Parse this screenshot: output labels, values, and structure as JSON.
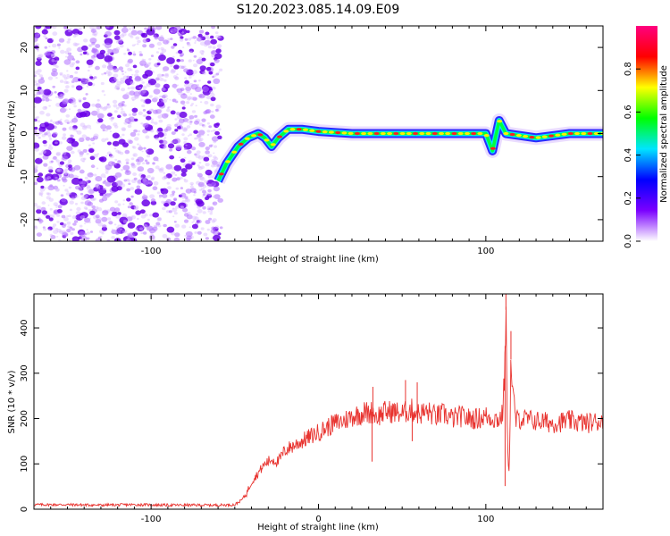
{
  "title": "S120.2023.085.14.09.E09",
  "chart_data": [
    {
      "type": "heatmap",
      "xlabel": "Height of straight line (km)",
      "ylabel": "Frequency (Hz)",
      "xlim": [
        -170,
        170
      ],
      "ylim": [
        -25,
        25
      ],
      "xticks": [
        -100,
        0,
        100
      ],
      "xtick_labels": [
        "-100",
        "",
        "100"
      ],
      "yticks": [
        -20,
        -10,
        0,
        10,
        20
      ],
      "ytick_labels": [
        "-20",
        "-10",
        "0",
        "10",
        "20"
      ],
      "grid": false,
      "noise_region_x": [
        -170,
        -58
      ],
      "ridge": [
        {
          "x": -60,
          "y": -11
        },
        {
          "x": -55,
          "y": -7
        },
        {
          "x": -48,
          "y": -3
        },
        {
          "x": -42,
          "y": -1
        },
        {
          "x": -36,
          "y": 0
        },
        {
          "x": -32,
          "y": -1
        },
        {
          "x": -28,
          "y": -3
        },
        {
          "x": -24,
          "y": -1
        },
        {
          "x": -18,
          "y": 1
        },
        {
          "x": -10,
          "y": 1
        },
        {
          "x": 0,
          "y": 0.5
        },
        {
          "x": 20,
          "y": 0
        },
        {
          "x": 60,
          "y": 0
        },
        {
          "x": 100,
          "y": 0
        },
        {
          "x": 104,
          "y": -4
        },
        {
          "x": 108,
          "y": 3
        },
        {
          "x": 112,
          "y": 0
        },
        {
          "x": 130,
          "y": -1
        },
        {
          "x": 150,
          "y": 0
        },
        {
          "x": 170,
          "y": 0
        }
      ],
      "colorbar": {
        "label": "Normalized spectral amplitude",
        "range": [
          0,
          1
        ],
        "ticks": [
          0.0,
          0.2,
          0.4,
          0.6,
          0.8
        ],
        "tick_labels": [
          "0.0",
          "0.2",
          "0.4",
          "0.6",
          "0.8"
        ],
        "colors": [
          "#ffffff",
          "#7b00ff",
          "#0000ff",
          "#00e5ff",
          "#00ff00",
          "#ffff00",
          "#ff0000",
          "#ff007f"
        ]
      }
    },
    {
      "type": "line",
      "xlabel": "Height of straight line (km)",
      "ylabel": "SNR (10 * v/v)",
      "xlim": [
        -170,
        170
      ],
      "ylim": [
        0,
        475
      ],
      "xticks": [
        -100,
        0,
        100
      ],
      "xtick_labels": [
        "-100",
        "0",
        "100"
      ],
      "yticks": [
        0,
        100,
        200,
        300,
        400
      ],
      "ytick_labels": [
        "0",
        "100",
        "200",
        "300",
        "400"
      ],
      "grid": false,
      "color": "#e8332f",
      "series": [
        {
          "x": [
            -170,
            -150,
            -130,
            -110,
            -90,
            -70,
            -60,
            -50,
            -46,
            -43,
            -40,
            -36,
            -32,
            -28,
            -24,
            -20,
            -15,
            -10,
            -5,
            0,
            5,
            10,
            15,
            20,
            25,
            28,
            30,
            32,
            35,
            40,
            45,
            50,
            55,
            60,
            65,
            70,
            75,
            80,
            85,
            90,
            95,
            100,
            105,
            108,
            110,
            111,
            112,
            113,
            114,
            115,
            116,
            118,
            120,
            130,
            140,
            150,
            160,
            170
          ],
          "y": [
            10,
            10,
            9,
            10,
            9,
            9,
            9,
            10,
            20,
            35,
            60,
            80,
            100,
            110,
            105,
            130,
            140,
            150,
            160,
            170,
            180,
            190,
            195,
            205,
            210,
            215,
            210,
            215,
            205,
            215,
            215,
            210,
            220,
            210,
            215,
            205,
            210,
            200,
            205,
            200,
            200,
            205,
            200,
            198,
            210,
            280,
            440,
            120,
            90,
            330,
            260,
            195,
            200,
            195,
            190,
            195,
            190,
            195
          ]
        }
      ],
      "spikes": [
        {
          "x": 32,
          "y": 105
        },
        {
          "x": 32.5,
          "y": 270
        },
        {
          "x": 52,
          "y": 285
        },
        {
          "x": 56,
          "y": 150
        },
        {
          "x": 59,
          "y": 280
        },
        {
          "x": 111.5,
          "y": 51
        },
        {
          "x": 112,
          "y": 478
        },
        {
          "x": 115,
          "y": 393
        }
      ]
    }
  ]
}
